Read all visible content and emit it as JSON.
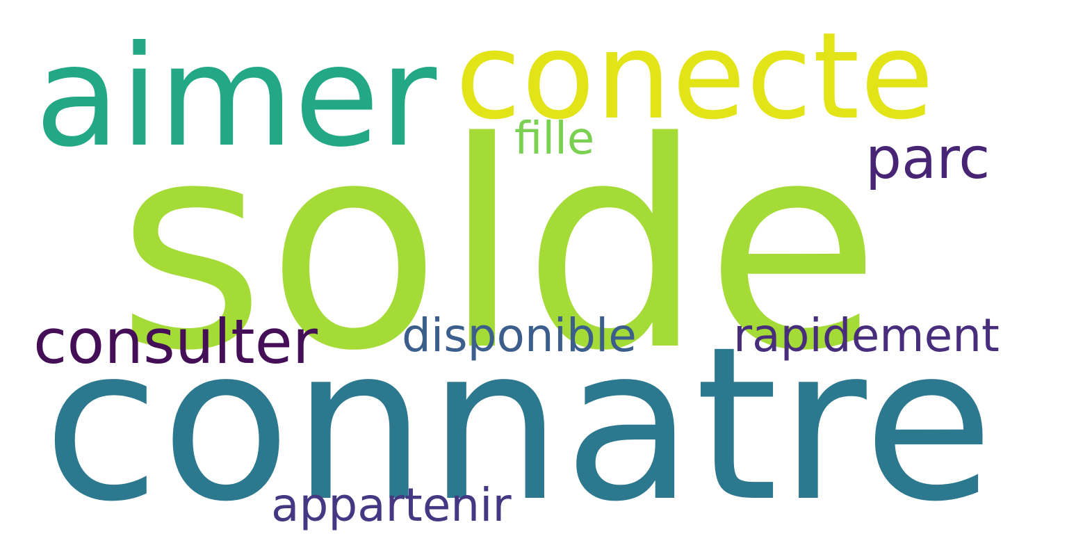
{
  "words": [
    {
      "id": "solde",
      "text": "solde",
      "color": "#a5db36"
    },
    {
      "id": "connatre",
      "text": "connatre",
      "color": "#2c788e"
    },
    {
      "id": "aimer",
      "text": "aimer",
      "color": "#22a884"
    },
    {
      "id": "conecte",
      "text": "conecte",
      "color": "#e3e418"
    },
    {
      "id": "consulter",
      "text": "consulter",
      "color": "#440f56"
    },
    {
      "id": "disponible",
      "text": "disponible",
      "color": "#3b5e8c"
    },
    {
      "id": "rapidement",
      "text": "rapidement",
      "color": "#472d7b"
    },
    {
      "id": "parc",
      "text": "parc",
      "color": "#482475"
    },
    {
      "id": "fille",
      "text": "fille",
      "color": "#7ad151"
    },
    {
      "id": "appartenir",
      "text": "appartenir",
      "color": "#453781"
    }
  ]
}
